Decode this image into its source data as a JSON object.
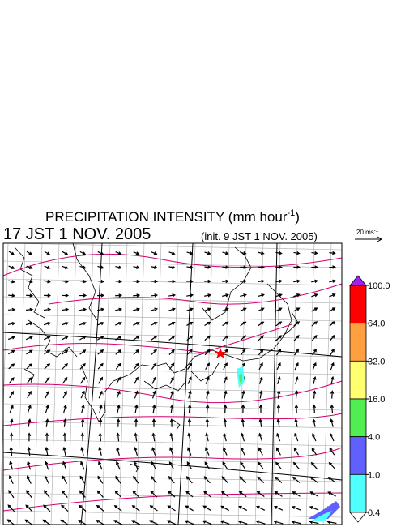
{
  "title": {
    "text": "PRECIPITATION INTENSITY (mm hour",
    "superscript": "-1",
    "closing": ")"
  },
  "valid_time": "17 JST 1 NOV. 2005",
  "init_time": "(init. 9 JST 1 NOV. 2005)",
  "wind_scale": {
    "text": "20 ms",
    "superscript": "-1"
  },
  "colorbar": {
    "levels": [
      {
        "value": 100,
        "label": "100.0"
      },
      {
        "value": 64,
        "label": "64.0"
      },
      {
        "value": 32,
        "label": "32.0"
      },
      {
        "value": 16,
        "label": "16.0"
      },
      {
        "value": 4,
        "label": "4.0"
      },
      {
        "value": 1,
        "label": "1.0"
      },
      {
        "value": 0.4,
        "label": "0.4"
      }
    ],
    "colors": [
      "#ff0000",
      "#ffa040",
      "#ffff70",
      "#50ee50",
      "#6060ff",
      "#50ffff"
    ],
    "over_color": "#a020f0",
    "under_color": "#ffffff"
  }
}
